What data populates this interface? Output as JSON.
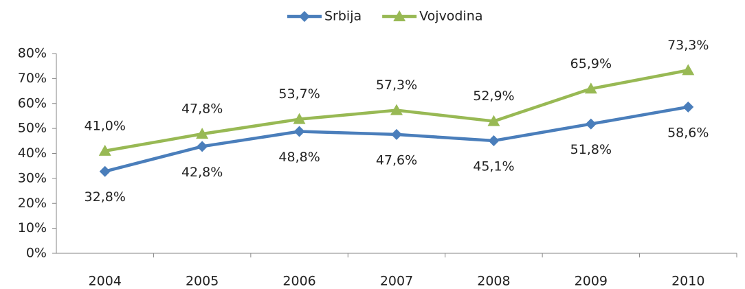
{
  "chart_data": {
    "type": "line",
    "categories": [
      "2004",
      "2005",
      "2006",
      "2007",
      "2008",
      "2009",
      "2010"
    ],
    "series": [
      {
        "name": "Srbija",
        "color": "#4a7ebb",
        "marker": "diamond",
        "label_position": "below",
        "values": [
          32.8,
          42.8,
          48.8,
          47.6,
          45.1,
          51.8,
          58.6
        ],
        "value_labels": [
          "32,8%",
          "42,8%",
          "48,8%",
          "47,6%",
          "45,1%",
          "51,8%",
          "58,6%"
        ]
      },
      {
        "name": "Vojvodina",
        "color": "#98b954",
        "marker": "triangle",
        "label_position": "above",
        "values": [
          41.0,
          47.8,
          53.7,
          57.3,
          52.9,
          65.9,
          73.3
        ],
        "value_labels": [
          "41,0%",
          "47,8%",
          "53,7%",
          "57,3%",
          "52,9%",
          "65,9%",
          "73,3%"
        ]
      }
    ],
    "ylim": [
      0,
      80
    ],
    "yticks": [
      {
        "value": 0,
        "label": "0%"
      },
      {
        "value": 10,
        "label": "10%"
      },
      {
        "value": 20,
        "label": "20%"
      },
      {
        "value": 30,
        "label": "30%"
      },
      {
        "value": 40,
        "label": "40%"
      },
      {
        "value": 50,
        "label": "50%"
      },
      {
        "value": 60,
        "label": "60%"
      },
      {
        "value": 70,
        "label": "70%"
      },
      {
        "value": 80,
        "label": "80%"
      }
    ],
    "grid": false,
    "legend": "top"
  }
}
